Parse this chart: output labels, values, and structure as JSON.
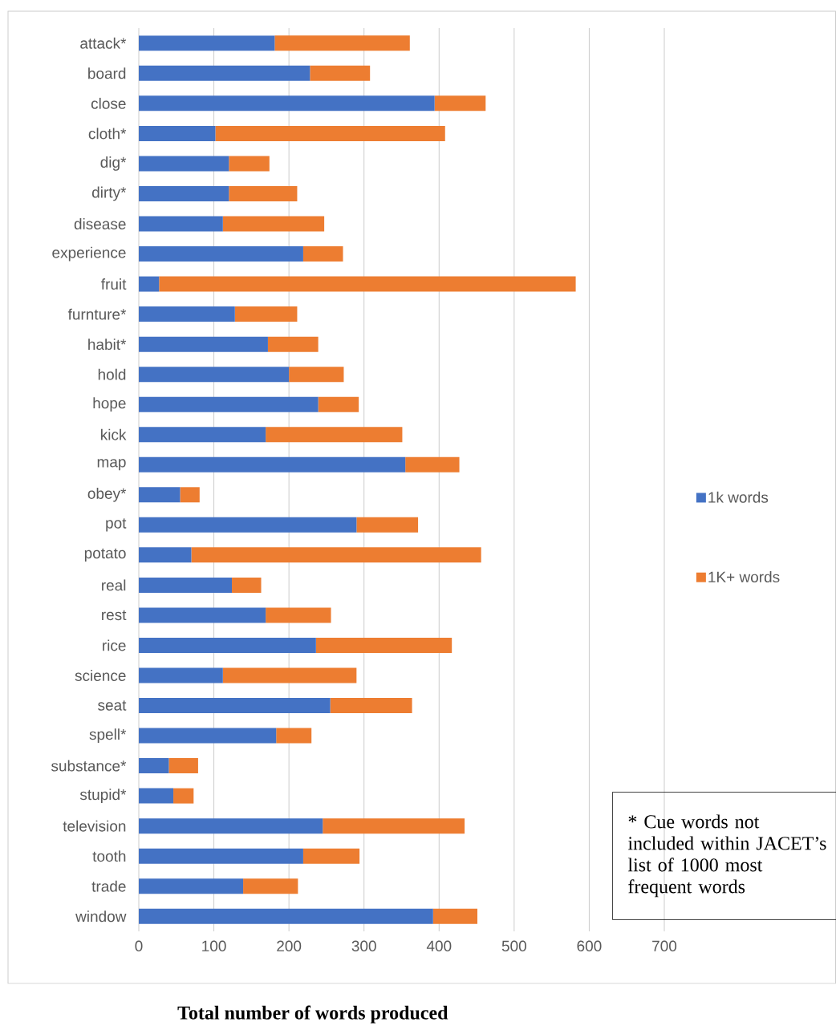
{
  "chart_data": {
    "type": "bar",
    "orientation": "horizontal",
    "stacked": true,
    "grid": "x",
    "legend": "right",
    "xlabel": "**Total number of words produced**",
    "categories": [
      "attack*",
      "board",
      "close",
      "cloth*",
      "dig*",
      "dirty*",
      "disease",
      "experience",
      "fruit",
      "furnture*",
      "habit*",
      "hold",
      "hope",
      "kick",
      "map",
      "obey*",
      "pot",
      "potato",
      "real",
      "rest",
      "rice",
      "science",
      "seat",
      "spell*",
      "substance*",
      "stupid*",
      "television",
      "tooth",
      "trade",
      "window"
    ],
    "series": [
      {
        "name": "1k words",
        "color": "#4472c4",
        "values": [
          181,
          228,
          394,
          102,
          120,
          120,
          112,
          219,
          27,
          128,
          172,
          200,
          239,
          169,
          355,
          55,
          290,
          70,
          124,
          169,
          236,
          112,
          255,
          183,
          40,
          46,
          245,
          219,
          139,
          392
        ]
      },
      {
        "name": "1K+ words",
        "color": "#ed7d31",
        "values": [
          180,
          80,
          68,
          306,
          54,
          91,
          135,
          53,
          555,
          83,
          67,
          73,
          54,
          182,
          72,
          26,
          82,
          386,
          39,
          87,
          181,
          178,
          109,
          47,
          39,
          27,
          189,
          75,
          73,
          59
        ]
      }
    ],
    "xlim": [
      0,
      700
    ],
    "xticks": [
      0,
      100,
      200,
      300,
      400,
      500,
      600,
      700
    ],
    "annotations": [
      "* Cue words not included within JACET’s list of 1000 most frequent words"
    ]
  }
}
